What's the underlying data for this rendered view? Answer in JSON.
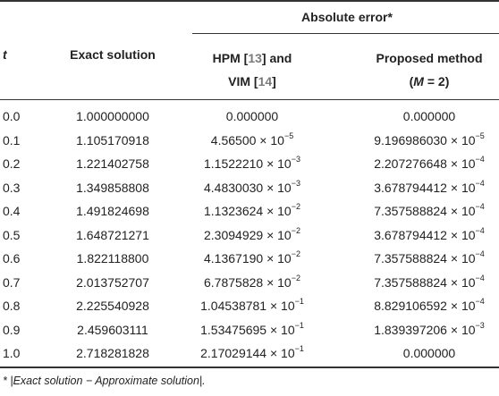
{
  "header": {
    "group_label": "Absolute error*",
    "col_t": "t",
    "col_exact": "Exact solution",
    "col_hpm_line1_a": "HPM [",
    "col_hpm_ref1": "13",
    "col_hpm_line1_b": "] and",
    "col_hpm_line2_a": "VIM [",
    "col_hpm_ref2": "14",
    "col_hpm_line2_b": "]",
    "col_proposed_line1": "Proposed method",
    "col_proposed_line2_open": "(",
    "col_proposed_line2_var": "M",
    "col_proposed_line2_rest": " = 2)"
  },
  "rows": [
    {
      "t": "0.0",
      "exact": "1.000000000",
      "hpm": {
        "m": "0.000000",
        "e": ""
      },
      "prop": {
        "m": "0.000000",
        "e": ""
      }
    },
    {
      "t": "0.1",
      "exact": "1.105170918",
      "hpm": {
        "m": "4.56500",
        "e": "−5"
      },
      "prop": {
        "m": "9.196986030",
        "e": "−5"
      }
    },
    {
      "t": "0.2",
      "exact": "1.221402758",
      "hpm": {
        "m": "1.1522210",
        "e": "−3"
      },
      "prop": {
        "m": "2.207276648",
        "e": "−4"
      }
    },
    {
      "t": "0.3",
      "exact": "1.349858808",
      "hpm": {
        "m": "4.4830030",
        "e": "−3"
      },
      "prop": {
        "m": "3.678794412",
        "e": "−4"
      }
    },
    {
      "t": "0.4",
      "exact": "1.491824698",
      "hpm": {
        "m": "1.1323624",
        "e": "−2"
      },
      "prop": {
        "m": "7.357588824",
        "e": "−4"
      }
    },
    {
      "t": "0.5",
      "exact": "1.648721271",
      "hpm": {
        "m": "2.3094929",
        "e": "−2"
      },
      "prop": {
        "m": "3.678794412",
        "e": "−4"
      }
    },
    {
      "t": "0.6",
      "exact": "1.822118800",
      "hpm": {
        "m": "4.1367190",
        "e": "−2"
      },
      "prop": {
        "m": "7.357588824",
        "e": "−4"
      }
    },
    {
      "t": "0.7",
      "exact": "2.013752707",
      "hpm": {
        "m": "6.7875828",
        "e": "−2"
      },
      "prop": {
        "m": "7.357588824",
        "e": "−4"
      }
    },
    {
      "t": "0.8",
      "exact": "2.225540928",
      "hpm": {
        "m": "1.04538781",
        "e": "−1"
      },
      "prop": {
        "m": "8.829106592",
        "e": "−4"
      }
    },
    {
      "t": "0.9",
      "exact": "2.459603111",
      "hpm": {
        "m": "1.53475695",
        "e": "−1"
      },
      "prop": {
        "m": "1.839397206",
        "e": "−3"
      }
    },
    {
      "t": "1.0",
      "exact": "2.718281828",
      "hpm": {
        "m": "2.17029144",
        "e": "−1"
      },
      "prop": {
        "m": "0.000000",
        "e": ""
      }
    }
  ],
  "sci": {
    "times": " × 10"
  },
  "footnote": {
    "marker": "* ",
    "text": "|Exact solution − Approximate solution|."
  },
  "colors": {
    "rule": "#333333",
    "text": "#222222",
    "reference": "#7a7a7a"
  }
}
